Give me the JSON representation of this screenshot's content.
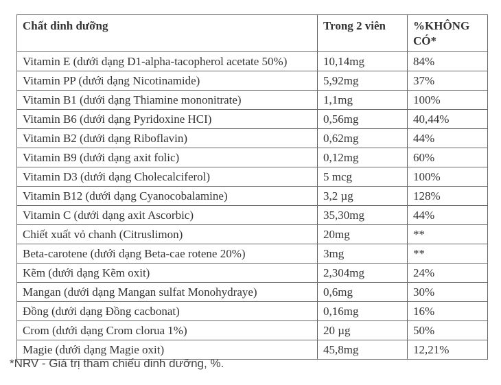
{
  "table": {
    "headers": {
      "nutrient": "Chất dinh dưỡng",
      "amount": "Trong 2 viên",
      "percent": "%KHÔNG CÓ*"
    },
    "rows": [
      {
        "nutrient": "Vitamin E (dưới dạng D1-alpha-tacopherol acetate 50%)",
        "amount": "10,14mg",
        "percent": "84%"
      },
      {
        "nutrient": "Vitamin PP (dưới dạng Nicotinamide)",
        "amount": "5,92mg",
        "percent": "37%"
      },
      {
        "nutrient": "Vitamin B1 (dưới dạng Thiamine mononitrate)",
        "amount": "1,1mg",
        "percent": "100%"
      },
      {
        "nutrient": "Vitamin B6 (dưới dạng Pyridoxine HCI)",
        "amount": "0,56mg",
        "percent": "40,44%"
      },
      {
        "nutrient": "Vitamin B2 (dưới dạng Riboflavin)",
        "amount": "0,62mg",
        "percent": "44%"
      },
      {
        "nutrient": "Vitamin B9 (dưới dạng axit folic)",
        "amount": "0,12mg",
        "percent": "60%"
      },
      {
        "nutrient": "Vitamin D3 (dưới dạng Cholecalciferol)",
        "amount": "5 mcg",
        "percent": "100%"
      },
      {
        "nutrient": "Vitamin B12 (dưới dạng Cyanocobalamine)",
        "amount": "3,2 µg",
        "percent": "128%"
      },
      {
        "nutrient": "Vitamin C (dưới dạng axit Ascorbic)",
        "amount": "35,30mg",
        "percent": "44%"
      },
      {
        "nutrient": "Chiết xuất vỏ chanh (Citruslimon)",
        "amount": "20mg",
        "percent": "**"
      },
      {
        "nutrient": "Beta-carotene (dưới dạng Beta-cae rotene 20%)",
        "amount": "3mg",
        "percent": "**"
      },
      {
        "nutrient": "Kẽm (dưới dạng Kẽm oxit)",
        "amount": "2,304mg",
        "percent": "24%"
      },
      {
        "nutrient": "Mangan (dưới dạng Mangan sulfat Monohydraye)",
        "amount": "0,6mg",
        "percent": "30%"
      },
      {
        "nutrient": "Đồng (dưới dạng Đồng cacbonat)",
        "amount": "0,16mg",
        "percent": "16%"
      },
      {
        "nutrient": "Crom (dưới dạng Crom clorua 1%)",
        "amount": "20 µg",
        "percent": "50%"
      },
      {
        "nutrient": "Magie (dưới dạng Magie oxit)",
        "amount": "45,8mg",
        "percent": "12,21%"
      }
    ]
  },
  "footnote": "*NRV - Giá trị tham chiếu dinh dưỡng, %."
}
